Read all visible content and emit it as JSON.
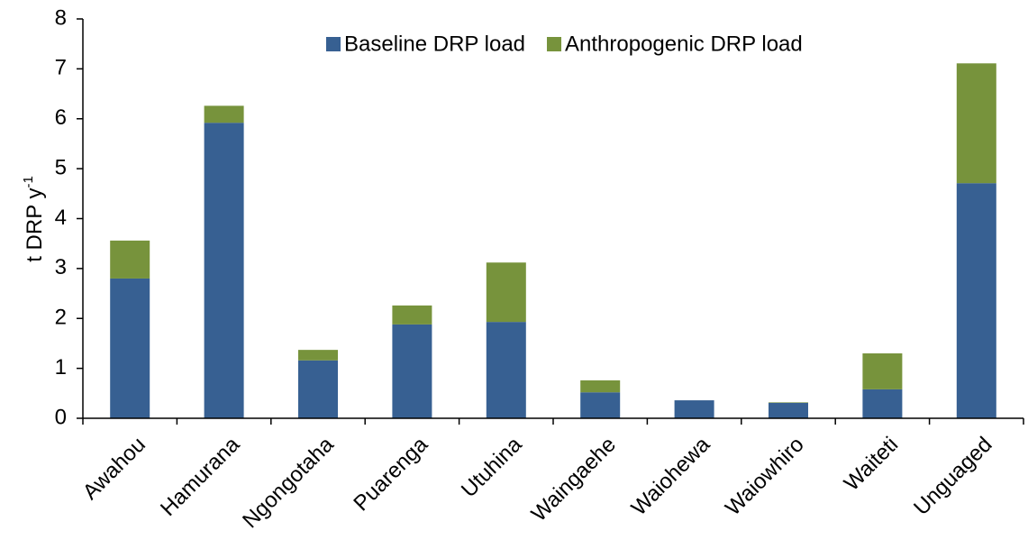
{
  "chart_data": {
    "type": "stacked_bar",
    "y_label": "t DRP y",
    "y_label_superscript": "-1",
    "categories": [
      "Awahou",
      "Hamurana",
      "Ngongotaha",
      "Puarenga",
      "Utuhina",
      "Waingaehe",
      "Waiohewa",
      "Waiowhiro",
      "Waiteti",
      "Unguaged"
    ],
    "series": [
      {
        "name": "Baseline DRP load",
        "color": "#376092",
        "values": [
          2.8,
          5.92,
          1.16,
          1.88,
          1.93,
          0.52,
          0.36,
          0.31,
          0.58,
          4.71
        ]
      },
      {
        "name": "Anthropogenic DRP load",
        "color": "#77933c",
        "values": [
          0.76,
          0.34,
          0.21,
          0.38,
          1.19,
          0.24,
          0,
          0.01,
          0.72,
          2.4
        ]
      }
    ],
    "ylim": [
      0,
      8
    ],
    "yticks": [
      0,
      1,
      2,
      3,
      4,
      5,
      6,
      7,
      8
    ],
    "grid": false,
    "legend": "top"
  }
}
